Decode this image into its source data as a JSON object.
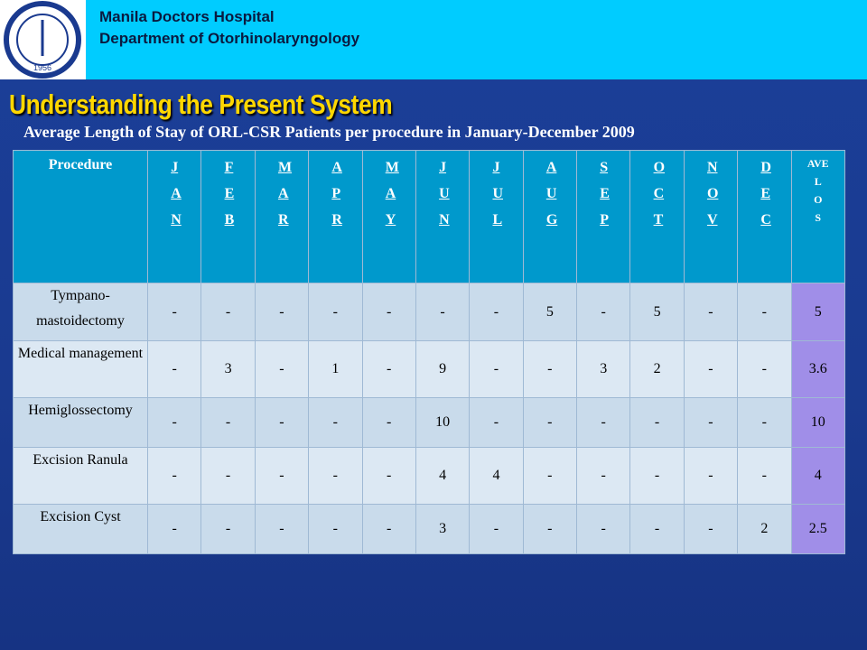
{
  "header": {
    "org": "Manila Doctors Hospital",
    "department": "Department of Otorhinolaryngology",
    "logo_year": "1956"
  },
  "title": "Understanding the Present System",
  "subtitle": "Average Length of Stay of ORL-CSR Patients per procedure in January-December 2009",
  "table": {
    "columns": [
      "Procedure",
      "JAN",
      "FEB",
      "MAR",
      "APR",
      "MAY",
      "JUN",
      "JUL",
      "AUG",
      "SEP",
      "OCT",
      "NOV",
      "DEC"
    ],
    "last_column": [
      "AVE",
      "L",
      "O",
      "S"
    ],
    "rows": [
      [
        "Tympano-mastoidectomy",
        "-",
        "-",
        "-",
        "-",
        "-",
        "-",
        "-",
        "5",
        "-",
        "5",
        "-",
        "-",
        "5"
      ],
      [
        "Medical management",
        "-",
        "3",
        "-",
        "1",
        "-",
        "9",
        "-",
        "-",
        "3",
        "2",
        "-",
        "-",
        "3.6"
      ],
      [
        "Hemiglossectomy",
        "-",
        "-",
        "-",
        "-",
        "-",
        "10",
        "-",
        "-",
        "-",
        "-",
        "-",
        "-",
        "10"
      ],
      [
        "Excision Ranula",
        "-",
        "-",
        "-",
        "-",
        "-",
        "4",
        "4",
        "-",
        "-",
        "-",
        "-",
        "-",
        "4"
      ],
      [
        "Excision Cyst",
        "-",
        "-",
        "-",
        "-",
        "-",
        "3",
        "-",
        "-",
        "-",
        "-",
        "-",
        "2",
        "2.5"
      ]
    ]
  }
}
